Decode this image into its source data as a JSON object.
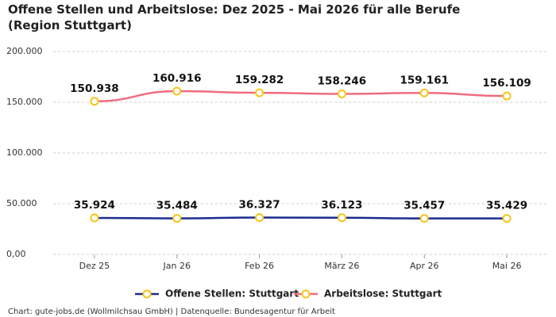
{
  "chart_data": {
    "type": "line",
    "title": "Offene Stellen und Arbeitslose: Dez 2025 - Mai 2026 für alle Berufe (Region Stuttgart)",
    "categories": [
      "Dez 25",
      "Jan 26",
      "Feb 26",
      "März 26",
      "Apr 26",
      "Mai 26"
    ],
    "series": [
      {
        "name": "Offene Stellen: Stuttgart",
        "color": "#1c2b8f",
        "values": [
          35924,
          35484,
          36327,
          36123,
          35457,
          35429
        ],
        "value_labels": [
          "35.924",
          "35.484",
          "36.327",
          "36.123",
          "35.457",
          "35.429"
        ]
      },
      {
        "name": "Arbeitslose: Stuttgart",
        "color": "#f06b80",
        "values": [
          150938,
          160916,
          159282,
          158246,
          159161,
          156109
        ],
        "value_labels": [
          "150.938",
          "160.916",
          "159.282",
          "158.246",
          "159.161",
          "156.109"
        ]
      }
    ],
    "marker_color": "#f5c518",
    "ylim": [
      0,
      200000
    ],
    "yticks": [
      {
        "value": 0,
        "label": "0,00"
      },
      {
        "value": 50000,
        "label": "50.000"
      },
      {
        "value": 100000,
        "label": "100.000"
      },
      {
        "value": 150000,
        "label": "150.000"
      },
      {
        "value": 200000,
        "label": "200.000"
      }
    ],
    "grid": true,
    "legend": "bottom",
    "source": "Chart: gute-jobs.de (Wollmilchsau GmbH) | Datenquelle: Bundesagentur für Arbeit"
  }
}
